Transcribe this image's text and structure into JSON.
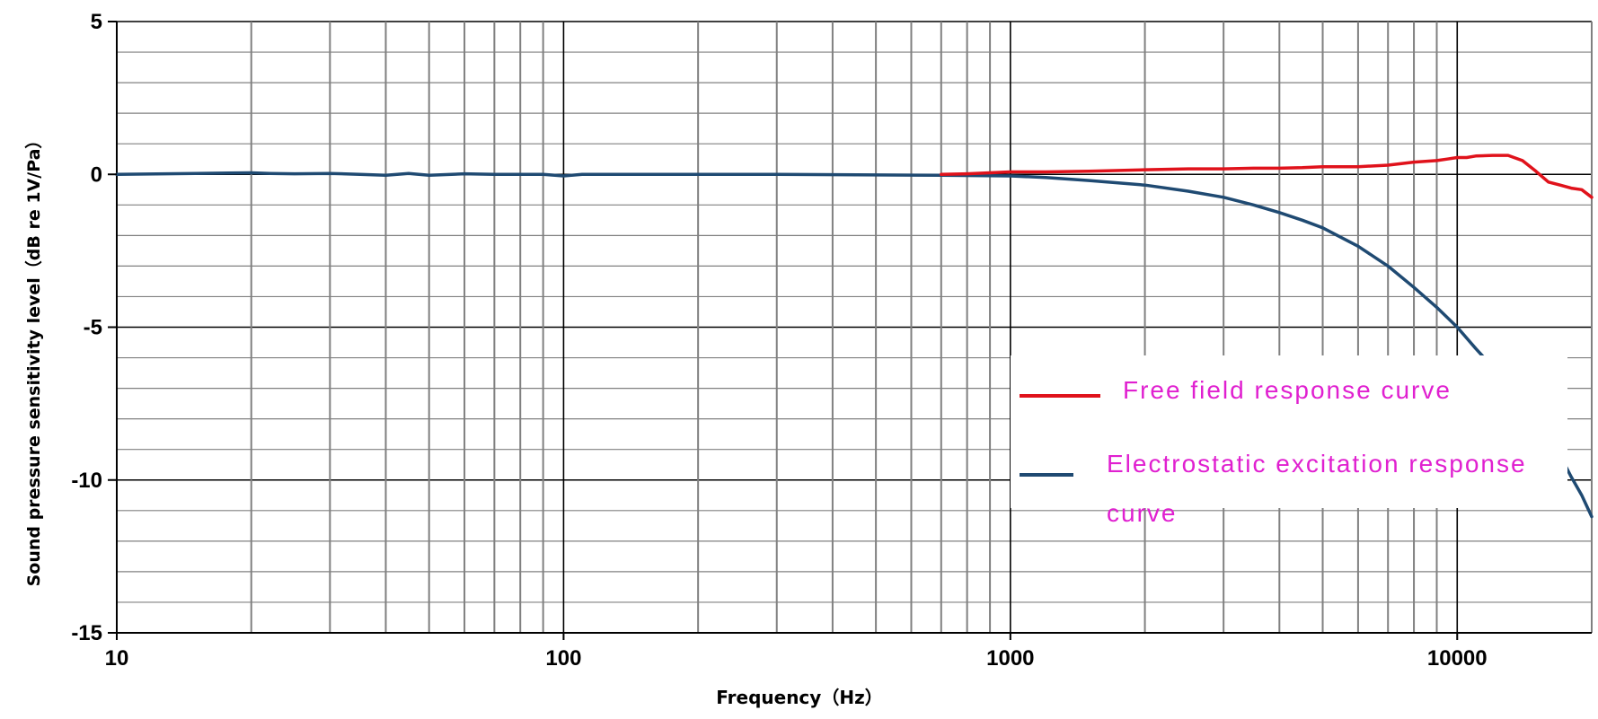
{
  "chart_data": {
    "type": "line",
    "title": "",
    "xlabel": "Frequency（Hz）",
    "ylabel": "Sound pressure sensitivity level（dB re 1V/Pa）",
    "x_scale": "log",
    "xlim": [
      10,
      20000
    ],
    "ylim": [
      -15,
      5
    ],
    "x_ticks": [
      "10",
      "100",
      "1000",
      "10000"
    ],
    "y_ticks": [
      "5",
      "0",
      "-5",
      "-10",
      "-15"
    ],
    "grid": true,
    "legend_position": "right",
    "colors": {
      "free_field": "#e0121b",
      "electrostatic": "#1f4a72",
      "legend_text": "#e020d0",
      "major_grid": "#000000",
      "minor_grid": "#808080"
    },
    "series": [
      {
        "name": "Free field response curve",
        "x": [
          700,
          800,
          900,
          1000,
          1200,
          1500,
          2000,
          2500,
          3000,
          3500,
          4000,
          4500,
          5000,
          6000,
          7000,
          8000,
          9000,
          9500,
          10000,
          10500,
          11000,
          12000,
          13000,
          14000,
          15000,
          16000,
          17000,
          18000,
          19000,
          20000
        ],
        "y": [
          0.0,
          0.02,
          0.05,
          0.08,
          0.08,
          0.1,
          0.15,
          0.18,
          0.18,
          0.2,
          0.2,
          0.22,
          0.25,
          0.25,
          0.3,
          0.4,
          0.45,
          0.5,
          0.55,
          0.55,
          0.6,
          0.62,
          0.62,
          0.45,
          0.1,
          -0.25,
          -0.35,
          -0.45,
          -0.5,
          -0.75
        ]
      },
      {
        "name": "Electrostatic excitation response curve",
        "x": [
          10,
          15,
          20,
          22,
          25,
          30,
          35,
          40,
          45,
          50,
          60,
          70,
          80,
          90,
          100,
          110,
          150,
          200,
          300,
          500,
          700,
          1000,
          1200,
          1500,
          2000,
          2500,
          3000,
          3500,
          4000,
          4500,
          5000,
          6000,
          7000,
          8000,
          9000,
          10000,
          11000,
          12000,
          13000,
          14000,
          15000,
          16000,
          17000,
          18000,
          19000,
          20000
        ],
        "y": [
          0.0,
          0.03,
          0.05,
          0.03,
          0.02,
          0.03,
          0.0,
          -0.03,
          0.03,
          -0.03,
          0.02,
          0.0,
          0.0,
          0.0,
          -0.05,
          0.0,
          0.0,
          0.0,
          0.0,
          -0.02,
          -0.03,
          -0.05,
          -0.1,
          -0.2,
          -0.35,
          -0.55,
          -0.75,
          -1.0,
          -1.25,
          -1.5,
          -1.75,
          -2.35,
          -3.0,
          -3.7,
          -4.35,
          -5.0,
          -5.7,
          -6.3,
          -6.85,
          -7.35,
          -7.9,
          -8.5,
          -9.2,
          -9.9,
          -10.5,
          -11.2
        ]
      }
    ]
  }
}
